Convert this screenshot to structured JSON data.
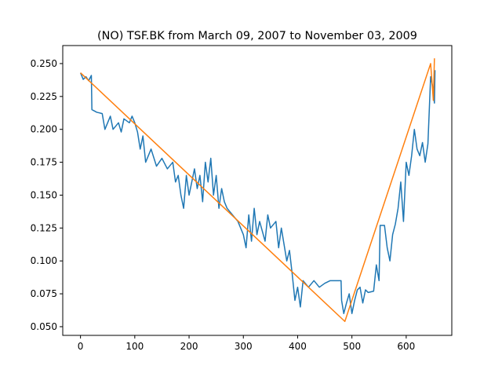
{
  "chart_data": {
    "type": "line",
    "title": "(NO) TSF.BK from March 09, 2007 to November 03, 2009",
    "xlim": [
      -32.7,
      684
    ],
    "ylim": [
      0.0434,
      0.2637
    ],
    "xticks": [
      0,
      100,
      200,
      300,
      400,
      500,
      600
    ],
    "yticks": [
      {
        "value": 0.05,
        "label": "0.050"
      },
      {
        "value": 0.075,
        "label": "0.075"
      },
      {
        "value": 0.1,
        "label": "0.100"
      },
      {
        "value": 0.125,
        "label": "0.125"
      },
      {
        "value": 0.15,
        "label": "0.150"
      },
      {
        "value": 0.175,
        "label": "0.175"
      },
      {
        "value": 0.2,
        "label": "0.200"
      },
      {
        "value": 0.225,
        "label": "0.225"
      },
      {
        "value": 0.25,
        "label": "0.250"
      }
    ],
    "series": [
      {
        "color": "#1f77b4",
        "x": [
          0,
          5,
          10,
          15,
          20,
          21,
          30,
          40,
          45,
          55,
          60,
          70,
          75,
          80,
          90,
          95,
          100,
          105,
          110,
          115,
          120,
          130,
          140,
          150,
          160,
          170,
          175,
          180,
          185,
          190,
          195,
          200,
          210,
          215,
          220,
          225,
          230,
          235,
          240,
          245,
          250,
          255,
          260,
          265,
          270,
          280,
          290,
          300,
          305,
          310,
          315,
          320,
          325,
          330,
          340,
          345,
          350,
          360,
          365,
          370,
          380,
          385,
          390,
          395,
          400,
          405,
          410,
          420,
          430,
          440,
          450,
          460,
          470,
          480,
          481,
          485,
          490,
          495,
          500,
          505,
          510,
          515,
          520,
          525,
          530,
          540,
          545,
          550,
          552,
          560,
          565,
          570,
          575,
          580,
          585,
          590,
          595,
          600,
          605,
          610,
          615,
          620,
          625,
          630,
          635,
          640,
          645,
          650,
          652,
          653
        ],
        "values": [
          0.243,
          0.238,
          0.24,
          0.237,
          0.241,
          0.215,
          0.213,
          0.212,
          0.2,
          0.21,
          0.2,
          0.205,
          0.198,
          0.208,
          0.205,
          0.21,
          0.205,
          0.198,
          0.185,
          0.195,
          0.175,
          0.185,
          0.172,
          0.178,
          0.17,
          0.175,
          0.16,
          0.165,
          0.15,
          0.14,
          0.165,
          0.15,
          0.17,
          0.155,
          0.165,
          0.145,
          0.175,
          0.16,
          0.178,
          0.15,
          0.165,
          0.14,
          0.155,
          0.145,
          0.14,
          0.135,
          0.13,
          0.12,
          0.11,
          0.135,
          0.115,
          0.14,
          0.12,
          0.13,
          0.115,
          0.135,
          0.125,
          0.13,
          0.11,
          0.125,
          0.1,
          0.108,
          0.09,
          0.07,
          0.08,
          0.065,
          0.085,
          0.08,
          0.085,
          0.08,
          0.083,
          0.085,
          0.085,
          0.085,
          0.07,
          0.06,
          0.068,
          0.075,
          0.06,
          0.07,
          0.078,
          0.08,
          0.068,
          0.078,
          0.076,
          0.077,
          0.097,
          0.085,
          0.127,
          0.127,
          0.11,
          0.1,
          0.12,
          0.128,
          0.14,
          0.16,
          0.13,
          0.175,
          0.165,
          0.18,
          0.2,
          0.185,
          0.18,
          0.19,
          0.175,
          0.189,
          0.24,
          0.23,
          0.22,
          0.245
        ]
      },
      {
        "color": "#ff7f0e",
        "x": [
          0,
          487,
          645,
          650,
          652
        ],
        "values": [
          0.243,
          0.054,
          0.25,
          0.222,
          0.254
        ]
      }
    ]
  }
}
